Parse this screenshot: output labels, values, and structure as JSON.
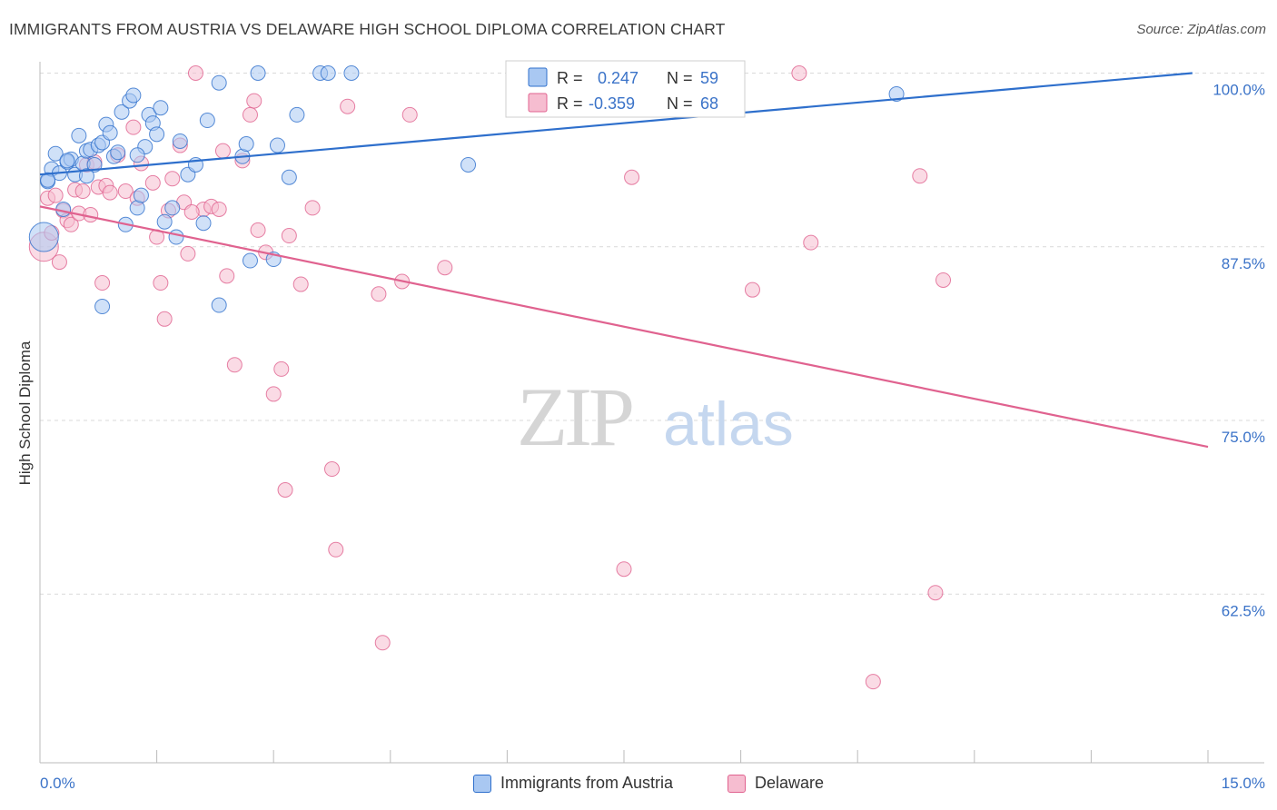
{
  "title": "IMMIGRANTS FROM AUSTRIA VS DELAWARE HIGH SCHOOL DIPLOMA CORRELATION CHART",
  "source": "Source: ZipAtlas.com",
  "watermark": {
    "zip": "ZIP",
    "atlas": "atlas"
  },
  "colors": {
    "blue": "#2e6fcc",
    "blue_fill": "#a9c8f2",
    "pink": "#e0628f",
    "pink_fill": "#f6bdd0",
    "axis_label": "#3b73c8",
    "grid": "#d9d9d9"
  },
  "legend": {
    "rows": [
      {
        "r_label": "R =",
        "r_value": "0.247",
        "n_label": "N =",
        "n_value": "59"
      },
      {
        "r_label": "R =",
        "r_value": "-0.359",
        "n_label": "N =",
        "n_value": "68"
      }
    ]
  },
  "bottom_legend": [
    "Immigrants from Austria",
    "Delaware"
  ],
  "chart_data": {
    "type": "scatter",
    "title": "IMMIGRANTS FROM AUSTRIA VS DELAWARE HIGH SCHOOL DIPLOMA CORRELATION CHART",
    "xlabel": "",
    "ylabel": "High School Diploma",
    "xlim": [
      0,
      15
    ],
    "ylim": [
      52,
      102
    ],
    "x_tick_labels": [
      "0.0%",
      "15.0%"
    ],
    "y_ticks": [
      62.5,
      75.0,
      87.5,
      100.0
    ],
    "y_tick_labels": [
      "62.5%",
      "75.0%",
      "87.5%",
      "100.0%"
    ],
    "grid": true,
    "series": [
      {
        "name": "Immigrants from Austria",
        "color": "blue",
        "r": 0.247,
        "n": 59,
        "trend": [
          [
            0,
            92.7
          ],
          [
            14.8,
            100.0
          ]
        ],
        "points": [
          [
            0.1,
            92.2
          ],
          [
            0.15,
            93.1
          ],
          [
            0.2,
            94.2
          ],
          [
            0.25,
            92.8
          ],
          [
            0.3,
            90.2
          ],
          [
            0.35,
            93.6
          ],
          [
            0.4,
            93.8
          ],
          [
            0.45,
            92.7
          ],
          [
            0.5,
            95.5
          ],
          [
            0.55,
            93.5
          ],
          [
            0.6,
            94.4
          ],
          [
            0.65,
            94.5
          ],
          [
            0.7,
            93.4
          ],
          [
            0.75,
            94.8
          ],
          [
            0.8,
            95.0
          ],
          [
            0.85,
            96.3
          ],
          [
            0.9,
            95.7
          ],
          [
            0.95,
            94.0
          ],
          [
            1.0,
            94.3
          ],
          [
            1.05,
            97.2
          ],
          [
            1.1,
            89.1
          ],
          [
            1.15,
            98.0
          ],
          [
            1.2,
            98.4
          ],
          [
            1.25,
            90.3
          ],
          [
            1.3,
            91.2
          ],
          [
            1.35,
            94.7
          ],
          [
            1.4,
            97.0
          ],
          [
            1.45,
            96.4
          ],
          [
            1.5,
            95.6
          ],
          [
            1.55,
            97.5
          ],
          [
            1.6,
            89.3
          ],
          [
            1.7,
            90.3
          ],
          [
            1.75,
            88.2
          ],
          [
            1.8,
            95.1
          ],
          [
            1.9,
            92.7
          ],
          [
            2.0,
            93.4
          ],
          [
            2.1,
            89.2
          ],
          [
            2.15,
            96.6
          ],
          [
            2.3,
            99.3
          ],
          [
            2.6,
            94.0
          ],
          [
            2.65,
            94.9
          ],
          [
            2.7,
            86.5
          ],
          [
            2.8,
            100.0
          ],
          [
            3.0,
            86.6
          ],
          [
            3.05,
            94.8
          ],
          [
            3.2,
            92.5
          ],
          [
            3.3,
            97.0
          ],
          [
            3.6,
            100.0
          ],
          [
            3.7,
            100.0
          ],
          [
            4.0,
            100.0
          ],
          [
            5.5,
            93.4
          ],
          [
            11.0,
            98.5
          ],
          [
            0.8,
            83.2
          ],
          [
            2.3,
            83.3
          ],
          [
            0.05,
            88.2
          ],
          [
            0.1,
            92.3
          ],
          [
            0.35,
            93.7
          ],
          [
            0.6,
            92.6
          ],
          [
            1.25,
            94.1
          ]
        ]
      },
      {
        "name": "Delaware",
        "color": "pink",
        "r": -0.359,
        "n": 68,
        "trend": [
          [
            0,
            90.4
          ],
          [
            15,
            73.1
          ]
        ],
        "points": [
          [
            0.05,
            87.5
          ],
          [
            0.1,
            91.0
          ],
          [
            0.15,
            88.5
          ],
          [
            0.2,
            91.2
          ],
          [
            0.25,
            86.4
          ],
          [
            0.3,
            90.1
          ],
          [
            0.35,
            89.4
          ],
          [
            0.4,
            89.1
          ],
          [
            0.45,
            91.6
          ],
          [
            0.5,
            89.9
          ],
          [
            0.55,
            91.5
          ],
          [
            0.6,
            93.4
          ],
          [
            0.65,
            89.8
          ],
          [
            0.7,
            93.6
          ],
          [
            0.75,
            91.8
          ],
          [
            0.8,
            84.9
          ],
          [
            0.85,
            91.9
          ],
          [
            0.9,
            91.4
          ],
          [
            1.0,
            94.1
          ],
          [
            1.1,
            91.5
          ],
          [
            1.2,
            96.1
          ],
          [
            1.25,
            91.0
          ],
          [
            1.3,
            93.5
          ],
          [
            1.45,
            92.1
          ],
          [
            1.5,
            88.2
          ],
          [
            1.55,
            84.9
          ],
          [
            1.6,
            82.3
          ],
          [
            1.65,
            90.1
          ],
          [
            1.7,
            92.4
          ],
          [
            1.8,
            94.8
          ],
          [
            1.85,
            90.7
          ],
          [
            1.9,
            87.0
          ],
          [
            2.0,
            100.0
          ],
          [
            2.1,
            90.2
          ],
          [
            2.2,
            90.4
          ],
          [
            2.3,
            90.2
          ],
          [
            2.35,
            94.4
          ],
          [
            2.4,
            85.4
          ],
          [
            2.5,
            79.0
          ],
          [
            2.6,
            93.7
          ],
          [
            2.7,
            97.0
          ],
          [
            2.75,
            98.0
          ],
          [
            2.8,
            88.7
          ],
          [
            2.9,
            87.1
          ],
          [
            3.0,
            76.9
          ],
          [
            3.1,
            78.7
          ],
          [
            3.15,
            70.0
          ],
          [
            3.2,
            88.3
          ],
          [
            3.35,
            84.8
          ],
          [
            3.5,
            90.3
          ],
          [
            3.75,
            71.5
          ],
          [
            3.8,
            65.7
          ],
          [
            3.95,
            97.6
          ],
          [
            4.35,
            84.1
          ],
          [
            4.4,
            59.0
          ],
          [
            4.65,
            85.0
          ],
          [
            4.75,
            97.0
          ],
          [
            5.2,
            86.0
          ],
          [
            7.5,
            64.3
          ],
          [
            7.6,
            92.5
          ],
          [
            9.15,
            84.4
          ],
          [
            9.75,
            100.0
          ],
          [
            9.9,
            87.8
          ],
          [
            10.7,
            56.2
          ],
          [
            11.3,
            92.6
          ],
          [
            11.5,
            62.6
          ],
          [
            11.6,
            85.1
          ],
          [
            1.95,
            90.0
          ]
        ]
      }
    ]
  }
}
